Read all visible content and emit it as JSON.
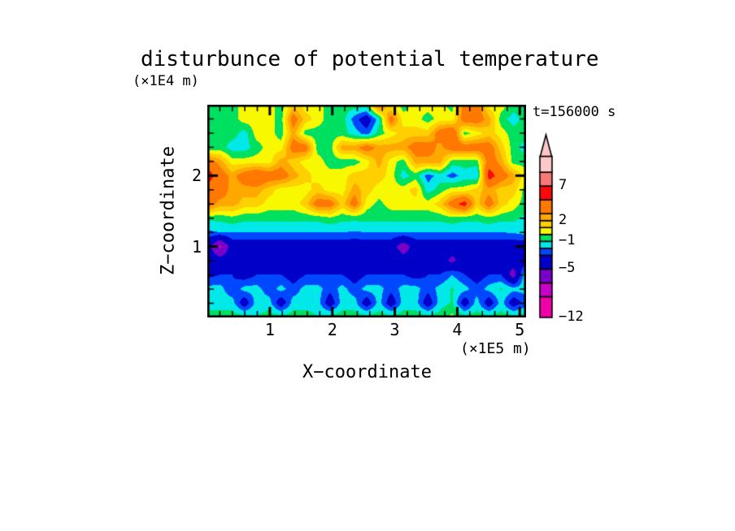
{
  "page": {
    "background": "#ffffff"
  },
  "header": {
    "title": "disturbunce of potential temperature"
  },
  "plot": {
    "time_label": "t=156000 s",
    "x_axis": {
      "label": "X−coordinate",
      "unit": "(×1E5 m)",
      "range": [
        0,
        5.1
      ],
      "major_ticks": [
        {
          "value": 1,
          "label": "1"
        },
        {
          "value": 2,
          "label": "2"
        },
        {
          "value": 3,
          "label": "3"
        },
        {
          "value": 4,
          "label": "4"
        },
        {
          "value": 5,
          "label": "5"
        }
      ],
      "minor_tick_step": 0.2
    },
    "z_axis": {
      "label": "Z−coordinate",
      "unit": "(×1E4 m)",
      "range": [
        0,
        3
      ],
      "major_ticks": [
        {
          "value": 1,
          "label": "1"
        },
        {
          "value": 2,
          "label": "2"
        }
      ],
      "minor_tick_step": 0.2
    }
  },
  "colorbar": {
    "arrow_color": "#FFC8C8",
    "border_color": "#000000",
    "labels": [
      {
        "text": "7",
        "value": 7
      },
      {
        "text": "2",
        "value": 2
      },
      {
        "text": "−1",
        "value": -1
      },
      {
        "text": "−5",
        "value": -5
      },
      {
        "text": "−12",
        "value": -12
      }
    ],
    "segments": [
      {
        "from": -12,
        "to": -9,
        "color": "#F000A8"
      },
      {
        "from": -9,
        "to": -7,
        "color": "#C800C8"
      },
      {
        "from": -7,
        "to": -5,
        "color": "#7800C8"
      },
      {
        "from": -5,
        "to": -3,
        "color": "#0000C8"
      },
      {
        "from": -3,
        "to": -2,
        "color": "#0048FF"
      },
      {
        "from": -2,
        "to": -1,
        "color": "#00E8E8"
      },
      {
        "from": -1,
        "to": 0,
        "color": "#00E060"
      },
      {
        "from": 0,
        "to": 1,
        "color": "#F8F800"
      },
      {
        "from": 1,
        "to": 2,
        "color": "#FFD000"
      },
      {
        "from": 2,
        "to": 3,
        "color": "#FFA800"
      },
      {
        "from": 3,
        "to": 5,
        "color": "#FF7800"
      },
      {
        "from": 5,
        "to": 7,
        "color": "#FA0A0A"
      },
      {
        "from": 7,
        "to": 9,
        "color": "#FA7878"
      },
      {
        "from": 9,
        "to": 11.3,
        "color": "#FFC8C8"
      }
    ]
  },
  "chart_data": {
    "type": "filled-contour",
    "title": "disturbunce of potential temperature",
    "xlabel": "X−coordinate",
    "ylabel": "Z−coordinate",
    "x_unit": "×1E5 m",
    "z_unit": "×1E4 m",
    "time": "t=156000 s",
    "x_range": [
      0,
      5.1
    ],
    "z_range": [
      0,
      3
    ],
    "contour_levels": [
      -12,
      -9,
      -7,
      -5,
      -3,
      -2,
      -1,
      0,
      1,
      2,
      3,
      5,
      7,
      9
    ],
    "level_colors": [
      "#F000A8",
      "#F000A8",
      "#C800C8",
      "#7800C8",
      "#0000C8",
      "#0048FF",
      "#00E8E8",
      "#00E060",
      "#F8F800",
      "#FFD000",
      "#FFA800",
      "#FF7800",
      "#FA0A0A",
      "#FA7878",
      "#FFC8C8"
    ],
    "grid": {
      "nx": 27,
      "nz": 16,
      "x0": 0,
      "x1": 5.1,
      "z_rows_top_to_bottom": [
        3.0,
        2.8,
        2.6,
        2.4,
        2.2,
        2.0,
        1.8,
        1.6,
        1.4,
        1.2,
        1.0,
        0.8,
        0.6,
        0.4,
        0.2,
        0.0
      ],
      "values": [
        [
          -0.5,
          -0.5,
          -0.5,
          0.5,
          0.5,
          0.5,
          -0.5,
          1.5,
          0.5,
          0.5,
          -0.5,
          -0.5,
          -0.5,
          -0.5,
          4,
          0.5,
          -0.5,
          0.5,
          0.5,
          0.5,
          -0.5,
          4,
          4,
          0.5,
          0.5,
          -0.5,
          -0.5
        ],
        [
          -0.5,
          -0.5,
          -0.5,
          0.5,
          0.5,
          0.5,
          -0.5,
          4,
          1.5,
          0.5,
          -0.5,
          -0.5,
          -2.5,
          -4,
          -1.5,
          4,
          0.5,
          0.5,
          -0.5,
          0.5,
          0.5,
          4,
          4,
          2.5,
          -0.5,
          -1.5,
          -0.5
        ],
        [
          -0.5,
          -0.5,
          -0.5,
          -1.5,
          0.5,
          0.5,
          -0.5,
          2.5,
          -0.5,
          -0.5,
          -0.5,
          -0.5,
          -1.5,
          -2.5,
          -0.5,
          0.5,
          1.5,
          1.5,
          1.5,
          4,
          5,
          -0.5,
          0.5,
          1.5,
          0.5,
          -0.5,
          -0.5
        ],
        [
          -1,
          -0.5,
          -1.5,
          -1.5,
          -0.5,
          0.5,
          0.5,
          4,
          4,
          -0.5,
          -0.5,
          2.5,
          2.5,
          4,
          2.5,
          2.5,
          2.5,
          4,
          4,
          2.5,
          4,
          4,
          4,
          4,
          1.5,
          -0.5,
          -1.5
        ],
        [
          4,
          2.5,
          0.5,
          0.5,
          0.5,
          0.5,
          2.5,
          1.5,
          0.5,
          0.5,
          -0.5,
          -0.5,
          -0.5,
          0.5,
          2.5,
          0.5,
          -0.5,
          2.5,
          2.5,
          2.5,
          -0.5,
          -0.5,
          -0.5,
          4,
          2.5,
          -0.5,
          -0.5
        ],
        [
          6,
          4,
          2.5,
          4,
          5,
          4,
          4,
          2.5,
          1.5,
          0.5,
          0.5,
          0.5,
          1.5,
          1.5,
          1.5,
          0.5,
          -1.5,
          -0.5,
          -2.5,
          -1.5,
          -2.5,
          -1.5,
          -2,
          6,
          4,
          2.5,
          0.5
        ],
        [
          4,
          4,
          2.5,
          2.5,
          2.5,
          1.5,
          0.5,
          0.5,
          0.5,
          1.5,
          0.5,
          0.5,
          2.5,
          1.5,
          0.5,
          0.5,
          0.5,
          1.5,
          -1.5,
          -0.5,
          0.5,
          0.5,
          1.5,
          2.5,
          1.5,
          1.5,
          -0.5
        ],
        [
          4,
          2.5,
          2.5,
          1.5,
          1.5,
          0.5,
          0.5,
          0.5,
          1.5,
          4,
          4,
          1.5,
          4,
          0.5,
          -0.3,
          0.5,
          0.5,
          0.5,
          0.5,
          1.5,
          4,
          6,
          1.5,
          4,
          1.5,
          0.5,
          -0.5
        ],
        [
          -0.7,
          -0.7,
          -0.3,
          -0.7,
          -0.7,
          -0.7,
          -0.7,
          -0.7,
          -0.7,
          -0.7,
          -0.2,
          -0.7,
          -0.7,
          -0.7,
          -0.7,
          -0.7,
          -0.7,
          -0.7,
          -0.7,
          -0.7,
          -0.3,
          -0.7,
          -0.7,
          -0.3,
          -0.7,
          -0.7,
          -1.3
        ],
        [
          -2.2,
          -2,
          -2,
          -2,
          -2,
          -2,
          -2,
          -2,
          -2,
          -2,
          -2,
          -2,
          -2.1,
          -2,
          -2,
          -2,
          -2,
          -2,
          -2,
          -2,
          -2,
          -2,
          -2,
          -2,
          -2,
          -1.9,
          -1.6
        ],
        [
          -4,
          -7.5,
          -4,
          -4,
          -4,
          -4,
          -4,
          -4,
          -4,
          -4,
          -4,
          -4,
          -4,
          -4,
          -4,
          -4,
          -6.2,
          -4,
          -4,
          -4,
          -4,
          -4,
          -4,
          -4,
          -4,
          -4,
          -4
        ],
        [
          -4,
          -4,
          -4,
          -4,
          -4,
          -4,
          -4,
          -4,
          -4,
          -4,
          -4,
          -4,
          -4,
          -4,
          -4,
          -4,
          -4,
          -4,
          -4,
          -4,
          -5.5,
          -4,
          -4,
          -4,
          -4,
          -4,
          -4
        ],
        [
          -3.4,
          -3,
          -3,
          -3.8,
          -3,
          -3,
          -3,
          -3.8,
          -3,
          -3,
          -3,
          -3,
          -3.8,
          -3,
          -3,
          -3,
          -3,
          -3.6,
          -3,
          -3,
          -2,
          -3,
          -3.8,
          -3,
          -3,
          -6,
          -0.8
        ],
        [
          -1.6,
          -1.6,
          -2.8,
          -1.6,
          -1.6,
          -2.6,
          -1.6,
          -2.6,
          -1.6,
          -1.6,
          -2.6,
          -1.6,
          -2.6,
          -1.6,
          -1.6,
          -2.6,
          -1.6,
          -1.6,
          -2.6,
          -1.6,
          -0.9,
          -1.6,
          -2.6,
          -1.6,
          -0.9,
          -1.6,
          -1.6
        ],
        [
          -1.5,
          -1.5,
          -1.5,
          -4,
          -1.5,
          -1.5,
          -4,
          -1.5,
          -1.5,
          -1.5,
          -4,
          -1.5,
          -1.5,
          -4,
          -1.5,
          -4,
          -1.5,
          -1.5,
          -4,
          -1.5,
          -0.9,
          -4,
          -1.5,
          -4,
          -1.5,
          -4,
          -2.5
        ],
        [
          -0.5,
          -0.5,
          -0.5,
          -0.5,
          -1,
          -0.5,
          -0.5,
          -0.5,
          -0.5,
          -1,
          -0.5,
          -0.5,
          -0.5,
          -0.5,
          -0.5,
          -0.5,
          -0.5,
          -0.5,
          -0.5,
          -0.5,
          0.3,
          -0.5,
          -0.5,
          -0.5,
          -0.5,
          -0.5,
          -0.5
        ]
      ]
    }
  }
}
